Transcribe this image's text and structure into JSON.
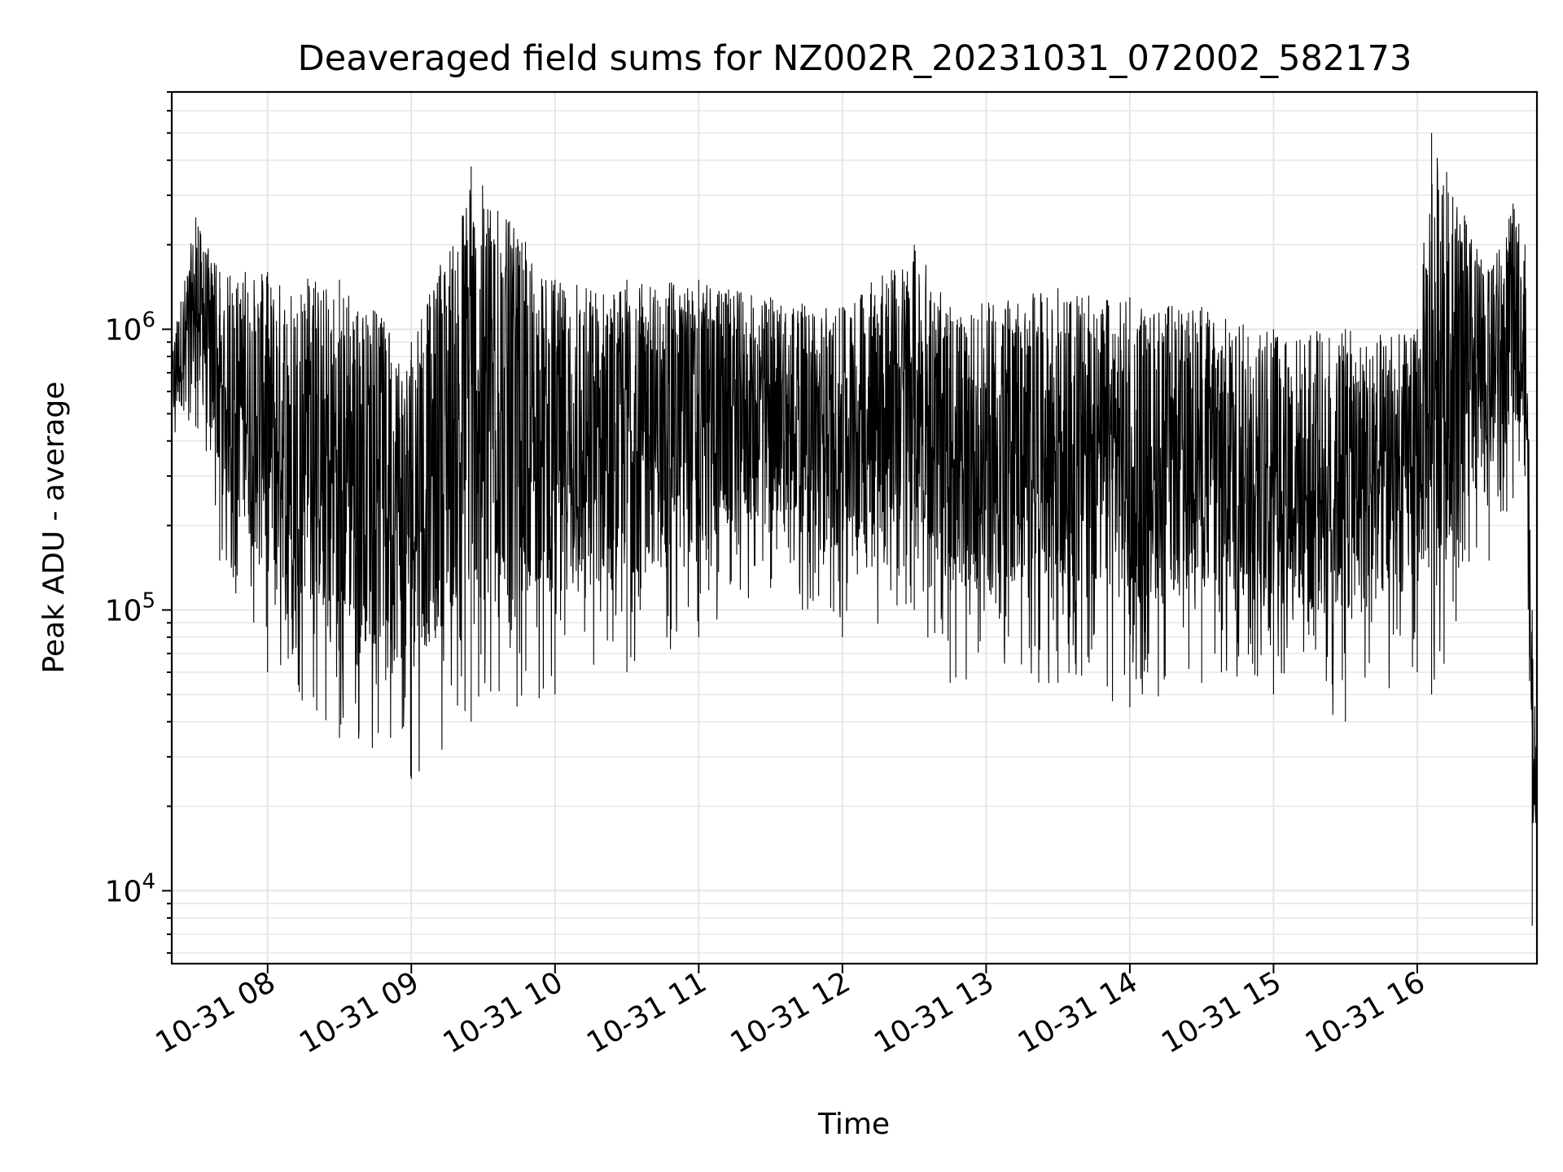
{
  "chart_data": {
    "type": "line",
    "title": "Deaveraged field sums for NZ002R_20231031_072002_582173",
    "xlabel": "Time",
    "ylabel": "Peak ADU - average",
    "yscale": "log",
    "ylim": [
      5500,
      7000000
    ],
    "xlim_hours": [
      7.333,
      16.833
    ],
    "x_tick_labels": [
      "10-31 08",
      "10-31 09",
      "10-31 10",
      "10-31 11",
      "10-31 12",
      "10-31 13",
      "10-31 14",
      "10-31 15",
      "10-31 16"
    ],
    "x_tick_hours": [
      8,
      9,
      10,
      11,
      12,
      13,
      14,
      15,
      16
    ],
    "y_ticks": [
      {
        "value": 10000,
        "base": "10",
        "exp": "4"
      },
      {
        "value": 100000,
        "base": "10",
        "exp": "5"
      },
      {
        "value": 1000000,
        "base": "10",
        "exp": "6"
      }
    ],
    "grid": true,
    "series": [
      {
        "color": "#000000",
        "envelope": [
          {
            "t": "10-31 07:20",
            "low": 350000,
            "high": 900000
          },
          {
            "t": "10-31 07:30",
            "low": 450000,
            "high": 2500000
          },
          {
            "t": "10-31 07:40",
            "low": 150000,
            "high": 1600000
          },
          {
            "t": "10-31 08:00",
            "low": 60000,
            "high": 1600000
          },
          {
            "t": "10-31 08:30",
            "low": 35000,
            "high": 1500000
          },
          {
            "t": "10-31 09:00",
            "low": 25000,
            "high": 900000
          },
          {
            "t": "10-31 09:25",
            "low": 40000,
            "high": 3800000
          },
          {
            "t": "10-31 10:00",
            "low": 50000,
            "high": 1500000
          },
          {
            "t": "10-31 10:30",
            "low": 60000,
            "high": 1500000
          },
          {
            "t": "10-31 11:00",
            "low": 80000,
            "high": 1500000
          },
          {
            "t": "10-31 11:30",
            "low": 120000,
            "high": 1300000
          },
          {
            "t": "10-31 12:00",
            "low": 80000,
            "high": 1200000
          },
          {
            "t": "10-31 12:30",
            "low": 100000,
            "high": 2000000
          },
          {
            "t": "10-31 12:45",
            "low": 55000,
            "high": 1200000
          },
          {
            "t": "10-31 13:30",
            "low": 55000,
            "high": 1400000
          },
          {
            "t": "10-31 14:00",
            "low": 45000,
            "high": 1300000
          },
          {
            "t": "10-31 14:30",
            "low": 55000,
            "high": 1200000
          },
          {
            "t": "10-31 15:00",
            "low": 50000,
            "high": 1000000
          },
          {
            "t": "10-31 15:30",
            "low": 40000,
            "high": 1000000
          },
          {
            "t": "10-31 16:00",
            "low": 60000,
            "high": 1000000
          },
          {
            "t": "10-31 16:06",
            "low": 50000,
            "high": 5000000
          },
          {
            "t": "10-31 16:30",
            "low": 150000,
            "high": 1600000
          },
          {
            "t": "10-31 16:40",
            "low": 250000,
            "high": 2800000
          },
          {
            "t": "10-31 16:45",
            "low": 300000,
            "high": 2000000
          },
          {
            "t": "10-31 16:48",
            "low": 7500,
            "high": 100000
          },
          {
            "t": "10-31 16:50",
            "low": 20000,
            "high": 50000
          }
        ]
      }
    ]
  }
}
